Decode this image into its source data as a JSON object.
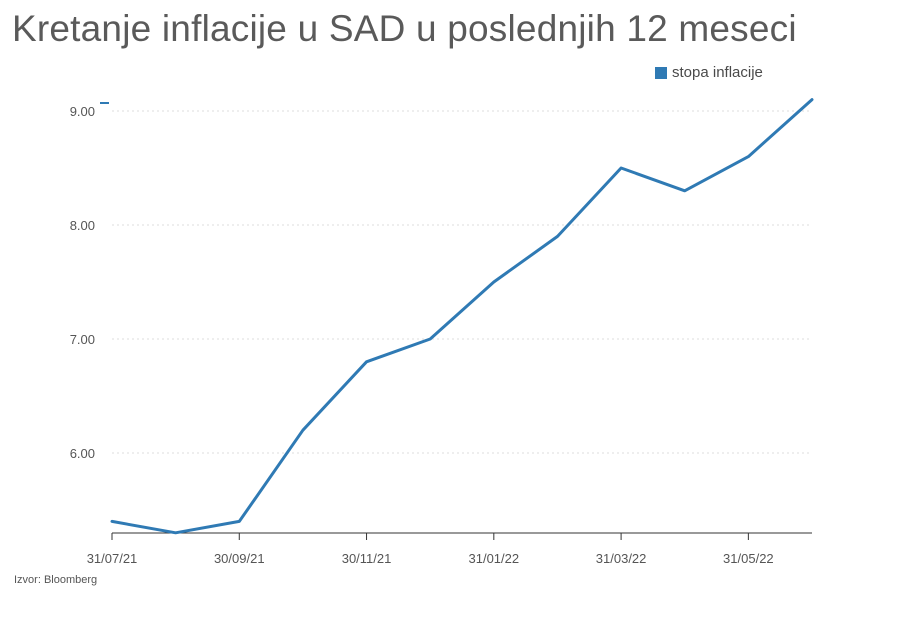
{
  "title": "Kretanje inflacije u SAD u poslednjih 12 meseci",
  "legend_label": "stopa inflacije",
  "source": "Izvor: Bloomberg",
  "colors": {
    "line": "#2f7ab4",
    "grid": "#dddddd",
    "axis": "#333333"
  },
  "chart_data": {
    "type": "line",
    "title": "Kretanje inflacije u SAD u poslednjih 12 meseci",
    "xlabel": "",
    "ylabel": "",
    "x": [
      "31/07/21",
      "31/08/21",
      "30/09/21",
      "31/10/21",
      "30/11/21",
      "31/12/21",
      "31/01/22",
      "28/02/22",
      "31/03/22",
      "30/04/22",
      "31/05/22",
      "30/06/22"
    ],
    "x_tick_labels": [
      "31/07/21",
      "30/09/21",
      "30/11/21",
      "31/01/22",
      "31/03/22",
      "31/05/22"
    ],
    "x_tick_indices": [
      0,
      2,
      4,
      6,
      8,
      10
    ],
    "y_ticks": [
      6,
      7,
      8,
      9
    ],
    "y_tick_labels": [
      "6.00",
      "7.00",
      "8.00",
      "9.00"
    ],
    "ylim": [
      5.3,
      9.1
    ],
    "grid": true,
    "legend": "top-right",
    "series": [
      {
        "name": "stopa inflacije",
        "values": [
          5.4,
          5.3,
          5.4,
          6.2,
          6.8,
          7.0,
          7.5,
          7.9,
          8.5,
          8.3,
          8.6,
          9.1
        ]
      }
    ]
  }
}
